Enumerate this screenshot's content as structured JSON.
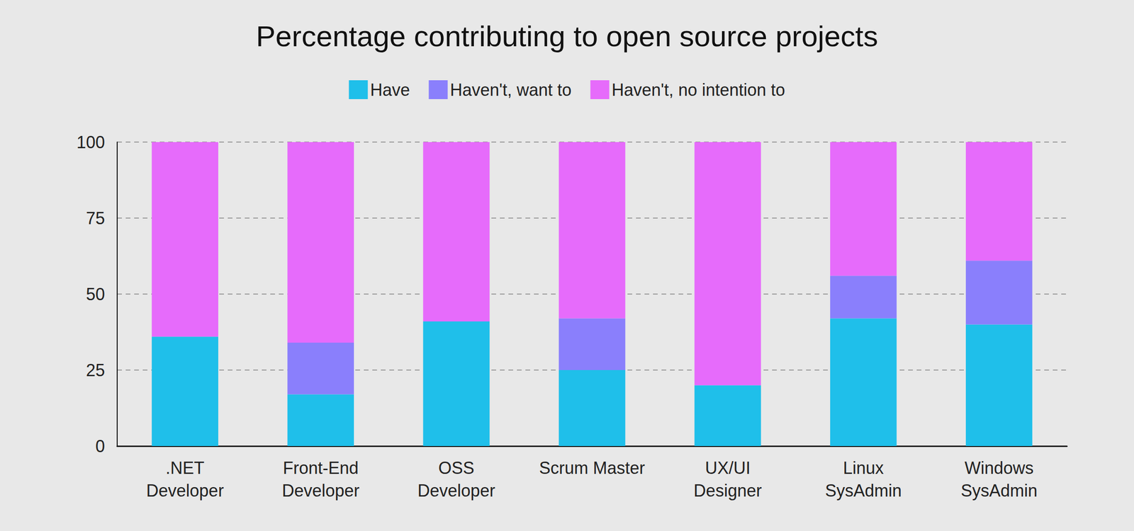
{
  "chart_data": {
    "type": "bar",
    "title": "Percentage contributing to open source projects",
    "categories": [
      ".NET\nDeveloper",
      "Front-End\nDeveloper",
      "OSS\nDeveloper",
      "Scrum Master",
      "UX/UI\nDesigner",
      "Linux\nSysAdmin",
      "Windows\nSysAdmin"
    ],
    "series": [
      {
        "name": "Have",
        "color": "#1fbfea",
        "values": [
          36,
          17,
          41,
          25,
          20,
          42,
          40
        ]
      },
      {
        "name": "Haven't, want to",
        "color": "#8a7ffc",
        "values": [
          0,
          17,
          0,
          17,
          0,
          14,
          21
        ]
      },
      {
        "name": "Haven't, no intention to",
        "color": "#e66bfb",
        "values": [
          64,
          66,
          59,
          58,
          80,
          44,
          39
        ]
      }
    ],
    "ylim": [
      0,
      100
    ],
    "yticks": [
      0,
      25,
      50,
      75,
      100
    ],
    "grid": true,
    "stacked": true,
    "legend": "top"
  }
}
